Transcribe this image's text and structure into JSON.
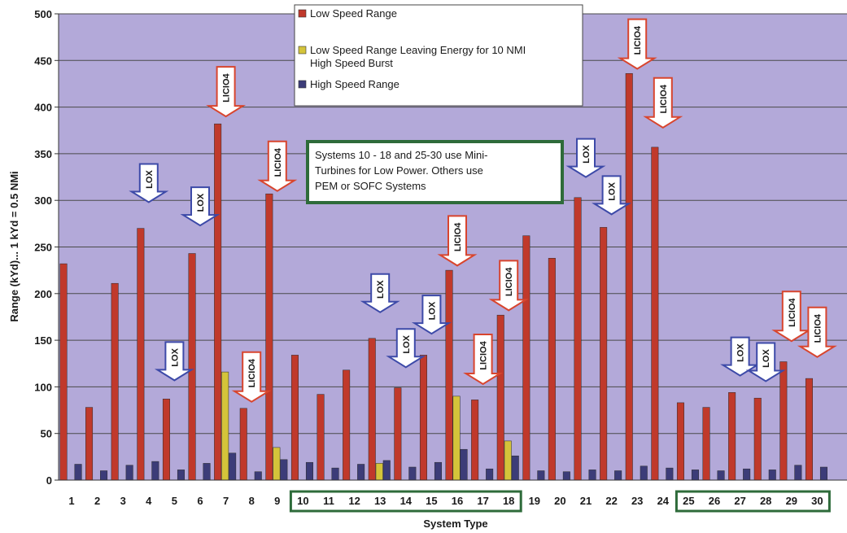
{
  "chart_data": {
    "type": "bar",
    "xlabel": "System Type",
    "ylabel": "Range (kYd)... 1 kYd = 0.5 NMi",
    "ylim": [
      0,
      500
    ],
    "yticks": [
      "0",
      "50",
      "100",
      "150",
      "200",
      "250",
      "300",
      "350",
      "400",
      "450",
      "500"
    ],
    "grid": true,
    "legend_position": "top-center",
    "categories": [
      "1",
      "2",
      "3",
      "4",
      "5",
      "6",
      "7",
      "8",
      "9",
      "10",
      "11",
      "12",
      "13",
      "14",
      "15",
      "16",
      "17",
      "18",
      "19",
      "20",
      "21",
      "22",
      "23",
      "24",
      "25",
      "26",
      "27",
      "28",
      "29",
      "30"
    ],
    "series": [
      {
        "name": "Low Speed Range",
        "color": "#c0392b",
        "values": [
          232,
          78,
          211,
          270,
          87,
          243,
          382,
          77,
          307,
          134,
          92,
          118,
          152,
          99,
          134,
          225,
          86,
          177,
          262,
          238,
          303,
          271,
          436,
          357,
          83,
          78,
          94,
          88,
          127,
          109
        ]
      },
      {
        "name": "Low Speed Range Leaving Energy for 10 NMI High Speed Burst",
        "color": "#d4c43a",
        "values": [
          null,
          null,
          null,
          null,
          null,
          null,
          116,
          null,
          35,
          null,
          null,
          null,
          18,
          null,
          null,
          90,
          null,
          42,
          null,
          null,
          null,
          null,
          null,
          null,
          null,
          null,
          null,
          null,
          null,
          null
        ]
      },
      {
        "name": "High Speed Range",
        "color": "#3c3c78",
        "values": [
          17,
          10,
          16,
          20,
          11,
          18,
          29,
          9,
          22,
          19,
          13,
          17,
          21,
          14,
          19,
          33,
          12,
          26,
          10,
          9,
          11,
          10,
          15,
          13,
          11,
          10,
          12,
          11,
          16,
          14
        ]
      }
    ],
    "annotations": [
      {
        "label": "LOX",
        "category": "4",
        "value": 298
      },
      {
        "label": "LOX",
        "category": "5",
        "value": 107
      },
      {
        "label": "LOX",
        "category": "6",
        "value": 273
      },
      {
        "label": "LICIO4",
        "category": "7",
        "value": 390
      },
      {
        "label": "LICIO4",
        "category": "8",
        "value": 84
      },
      {
        "label": "LICIO4",
        "category": "9",
        "value": 310
      },
      {
        "label": "LOX",
        "category": "13",
        "value": 180
      },
      {
        "label": "LOX",
        "category": "14",
        "value": 121
      },
      {
        "label": "LOX",
        "category": "15",
        "value": 157
      },
      {
        "label": "LICIO4",
        "category": "16",
        "value": 230
      },
      {
        "label": "LICIO4",
        "category": "17",
        "value": 103
      },
      {
        "label": "LICIO4",
        "category": "18",
        "value": 182
      },
      {
        "label": "LOX",
        "category": "21",
        "value": 325
      },
      {
        "label": "LOX",
        "category": "22",
        "value": 285
      },
      {
        "label": "LICIO4",
        "category": "23",
        "value": 441
      },
      {
        "label": "LICIO4",
        "category": "24",
        "value": 378
      },
      {
        "label": "LOX",
        "category": "27",
        "value": 112
      },
      {
        "label": "LOX",
        "category": "28",
        "value": 106
      },
      {
        "label": "LICIO4",
        "category": "29",
        "value": 149
      },
      {
        "label": "LICIO4",
        "category": "30",
        "value": 132
      }
    ],
    "note": {
      "lines": [
        "Systems 10 - 18 and 25-30 use Mini-",
        "Turbines for Low Power.  Others use",
        "PEM or SOFC Systems"
      ]
    },
    "highlight_groups": [
      {
        "from": "10",
        "to": "18"
      },
      {
        "from": "25",
        "to": "30"
      }
    ],
    "legend_lines": {
      "low_speed": [
        "Low Speed Range"
      ],
      "low_speed_burst": [
        "Low Speed Range Leaving Energy for 10 NMI",
        "High Speed Burst"
      ],
      "high_speed": [
        "High Speed Range"
      ]
    }
  },
  "colors": {
    "plot_bg": "#b3a9d9",
    "grid": "#4a4a4a",
    "note_border": "#2e6b3a",
    "group_border": "#2e6b3a",
    "arrow_fill": "#ffffff",
    "arrow_stroke_red": "#d8452e",
    "arrow_stroke_blue": "#3d4aa8"
  }
}
